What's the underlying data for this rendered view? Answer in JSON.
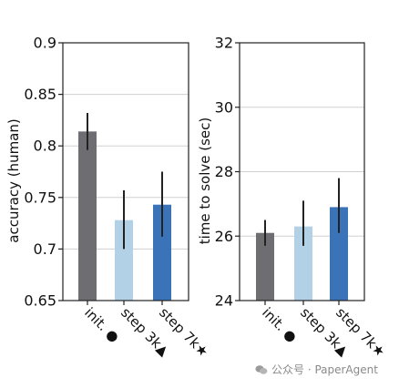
{
  "chart_data": [
    {
      "type": "bar",
      "categories": [
        "init. ●",
        "step 3k▲",
        "step 7k★"
      ],
      "values": [
        0.814,
        0.728,
        0.743
      ],
      "error_low": [
        0.796,
        0.7,
        0.712
      ],
      "error_high": [
        0.832,
        0.757,
        0.775
      ],
      "colors": [
        "#6e6e72",
        "#b3d1e6",
        "#3b73b9"
      ],
      "ylabel": "accuracy (human)",
      "ylim": [
        0.65,
        0.9
      ],
      "yticks": [
        "0.65",
        "0.7",
        "0.75",
        "0.8",
        "0.85",
        "0.9"
      ],
      "ytick_values": [
        0.65,
        0.7,
        0.75,
        0.8,
        0.85,
        0.9
      ],
      "grid": true
    },
    {
      "type": "bar",
      "categories": [
        "init. ●",
        "step 3k▲",
        "step 7k★"
      ],
      "values": [
        26.1,
        26.3,
        26.9
      ],
      "error_low": [
        25.7,
        25.7,
        26.1
      ],
      "error_high": [
        26.5,
        27.1,
        27.8
      ],
      "colors": [
        "#6e6e72",
        "#b3d1e6",
        "#3b73b9"
      ],
      "ylabel": "time to solve (sec)",
      "ylim": [
        24,
        32
      ],
      "yticks": [
        "24",
        "26",
        "28",
        "30",
        "32"
      ],
      "ytick_values": [
        24,
        26,
        28,
        30,
        32
      ],
      "grid": true
    }
  ],
  "watermark": {
    "text": "公众号 · PaperAgent",
    "icon": "wechat-icon"
  }
}
